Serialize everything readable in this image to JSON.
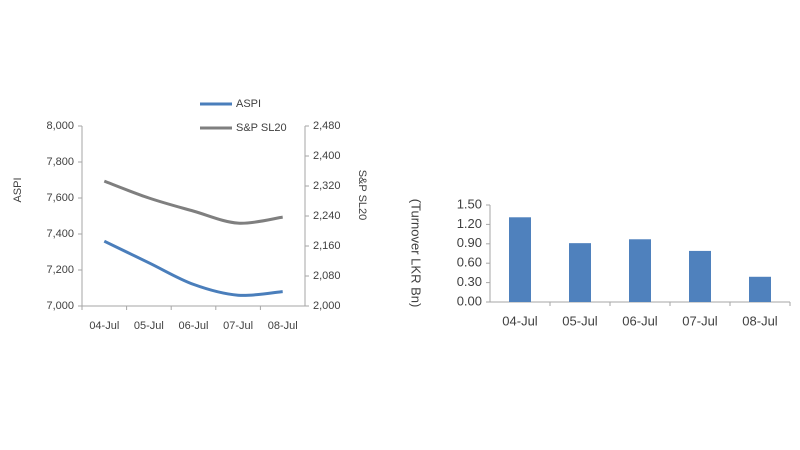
{
  "chart_data": [
    {
      "type": "line",
      "categories": [
        "04-Jul",
        "05-Jul",
        "06-Jul",
        "07-Jul",
        "08-Jul"
      ],
      "ylabel": "ASPI",
      "y2label": "S&P SL20",
      "series": [
        {
          "name": "ASPI",
          "color": "#4a7ebb",
          "values": [
            7360,
            7240,
            7120,
            7060,
            7080
          ]
        },
        {
          "name": "S&P SL20",
          "color": "#7f7f7f",
          "axis": "y2",
          "values": [
            2333,
            2288,
            2253,
            2221,
            2237
          ]
        }
      ],
      "ylim": [
        7000,
        8000
      ],
      "yticks": [
        {
          "value": 7000,
          "label": "7,000"
        },
        {
          "value": 7200,
          "label": "7,200"
        },
        {
          "value": 7400,
          "label": "7,400"
        },
        {
          "value": 7600,
          "label": "7,600"
        },
        {
          "value": 7800,
          "label": "7,800"
        },
        {
          "value": 8000,
          "label": "8,000"
        }
      ],
      "y2lim": [
        2000,
        2480
      ],
      "y2ticks": [
        {
          "value": 2000,
          "label": "2,000"
        },
        {
          "value": 2080,
          "label": "2,080"
        },
        {
          "value": 2160,
          "label": "2,160"
        },
        {
          "value": 2240,
          "label": "2,240"
        },
        {
          "value": 2320,
          "label": "2,320"
        },
        {
          "value": 2400,
          "label": "2,400"
        },
        {
          "value": 2480,
          "label": "2,480"
        }
      ],
      "grid": false,
      "legend": "top"
    },
    {
      "type": "bar",
      "categories": [
        "04-Jul",
        "05-Jul",
        "06-Jul",
        "07-Jul",
        "08-Jul"
      ],
      "ylabel": "(Turnover LKR Bn)",
      "color": "#4f81bd",
      "values": [
        1.31,
        0.91,
        0.97,
        0.79,
        0.39
      ],
      "ylim": [
        0,
        1.5
      ],
      "yticks": [
        {
          "value": 0,
          "label": "0.00"
        },
        {
          "value": 0.3,
          "label": "0.30"
        },
        {
          "value": 0.6,
          "label": "0.60"
        },
        {
          "value": 0.9,
          "label": "0.90"
        },
        {
          "value": 1.2,
          "label": "1.20"
        },
        {
          "value": 1.5,
          "label": "1.50"
        }
      ],
      "grid": false
    }
  ]
}
